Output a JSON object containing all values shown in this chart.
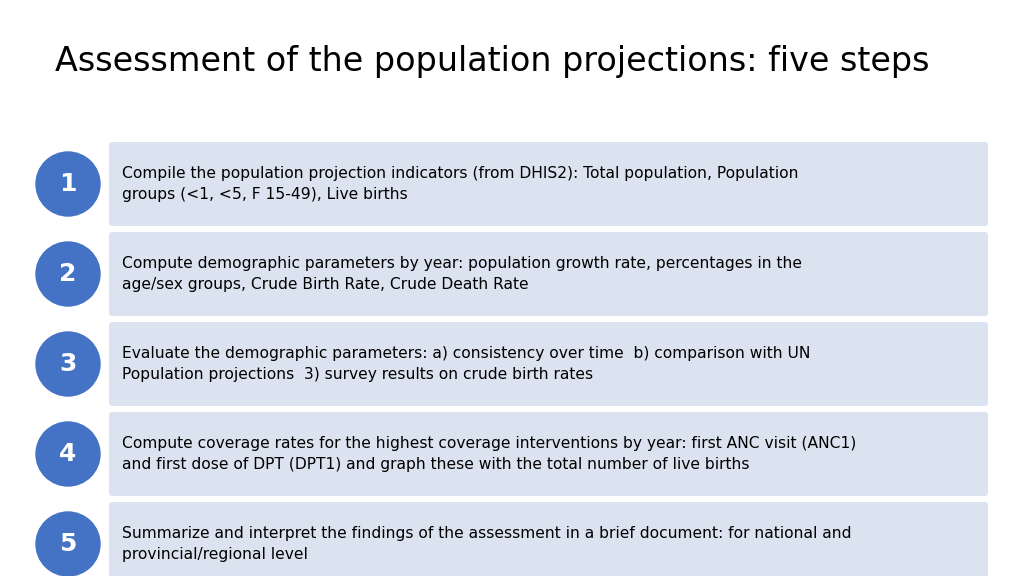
{
  "title": "Assessment of the population projections: five steps",
  "title_fontsize": 24,
  "background_color": "#ffffff",
  "circle_color": "#4472c4",
  "circle_text_color": "#ffffff",
  "box_color": "#dce3f0",
  "text_color": "#000000",
  "steps": [
    {
      "number": "1",
      "text": "Compile the population projection indicators (from DHIS2): Total population, Population\ngroups (<1, <5, F 15-49), Live births"
    },
    {
      "number": "2",
      "text": "Compute demographic parameters by year: population growth rate, percentages in the\nage/sex groups, Crude Birth Rate, Crude Death Rate"
    },
    {
      "number": "3",
      "text": "Evaluate the demographic parameters: a) consistency over time  b) comparison with UN\nPopulation projections  3) survey results on crude birth rates"
    },
    {
      "number": "4",
      "text": "Compute coverage rates for the highest coverage interventions by year: first ANC visit (ANC1)\nand first dose of DPT (DPT1) and graph these with the total number of live births"
    },
    {
      "number": "5",
      "text": "Summarize and interpret the findings of the assessment in a brief document: for national and\nprovincial/regional level"
    }
  ]
}
